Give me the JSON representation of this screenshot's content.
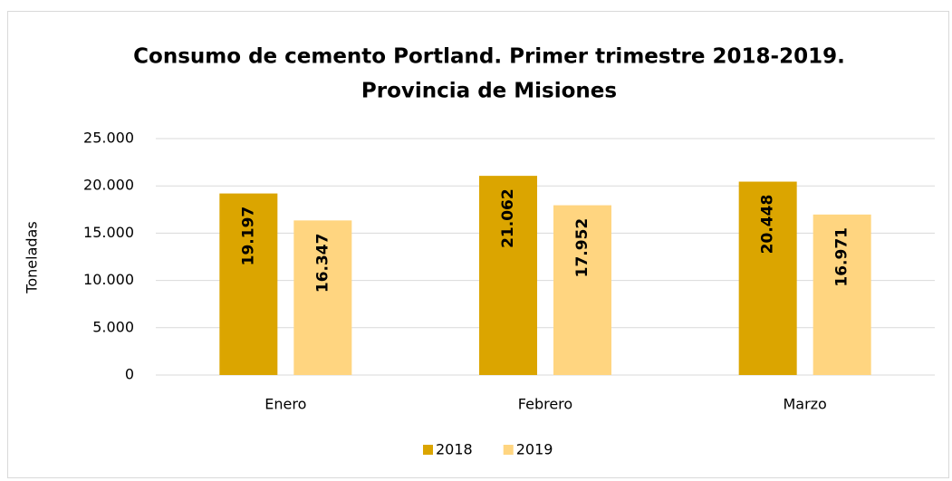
{
  "chart_data": {
    "type": "bar",
    "title": [
      "Consumo de cemento Portland. Primer trimestre 2018-2019.",
      "Provincia de Misiones"
    ],
    "y_label": "Toneladas",
    "categories": [
      "Enero",
      "Febrero",
      "Marzo"
    ],
    "series": [
      {
        "name": "2018",
        "color": "#dba500",
        "values": [
          19197,
          21062,
          20448
        ],
        "value_labels": [
          "19.197",
          "21.062",
          "20.448"
        ]
      },
      {
        "name": "2019",
        "color": "#ffd580",
        "values": [
          16347,
          17952,
          16971
        ],
        "value_labels": [
          "16.347",
          "17.952",
          "16.971"
        ]
      }
    ],
    "ylim": [
      0,
      25000
    ],
    "yticks": [
      0,
      {
        "value": 5000,
        "label": "5.000"
      },
      {
        "value": 10000,
        "label": "10.000"
      },
      {
        "value": 15000,
        "label": "15.000"
      },
      {
        "value": 20000,
        "label": "20.000"
      },
      {
        "value": 25000,
        "label": "25.000"
      }
    ],
    "grid": true,
    "legend": "bottom"
  }
}
